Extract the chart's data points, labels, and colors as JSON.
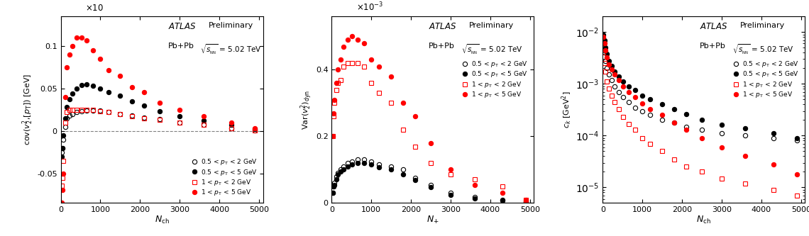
{
  "panel1": {
    "ylabel": "cov($v_{2}^{2}$,[$p_{\\mathrm{T}}$]) [GeV]",
    "xlabel": "$N_{\\mathrm{ch}}$",
    "ylim": [
      -0.085,
      0.135
    ],
    "xlim": [
      0,
      5100
    ],
    "ytick_vals": [
      -0.05,
      0,
      0.05,
      0.1
    ],
    "ytick_labels": [
      "-0.05",
      "0",
      "0.05",
      "0.1"
    ],
    "xtick_vals": [
      0,
      1000,
      2000,
      3000,
      4000,
      5000
    ],
    "scale_label": "$\\times$10",
    "series": {
      "black_open": {
        "x": [
          20,
          40,
          70,
          110,
          160,
          220,
          300,
          400,
          520,
          660,
          820,
          1000,
          1200,
          1500,
          1800,
          2100,
          2500,
          3000,
          3600,
          4300,
          4900
        ],
        "y": [
          -0.025,
          -0.02,
          -0.01,
          0.005,
          0.015,
          0.018,
          0.02,
          0.022,
          0.023,
          0.024,
          0.024,
          0.024,
          0.022,
          0.02,
          0.018,
          0.016,
          0.014,
          0.01,
          0.007,
          0.003,
          0.001
        ],
        "color": "black",
        "marker": "o",
        "fillstyle": "none"
      },
      "black_filled": {
        "x": [
          20,
          40,
          70,
          110,
          160,
          220,
          300,
          400,
          520,
          660,
          820,
          1000,
          1200,
          1500,
          1800,
          2100,
          2500,
          3000,
          3600,
          4300,
          4900
        ],
        "y": [
          -0.03,
          -0.02,
          -0.005,
          0.015,
          0.028,
          0.037,
          0.044,
          0.05,
          0.054,
          0.055,
          0.053,
          0.05,
          0.046,
          0.042,
          0.035,
          0.03,
          0.023,
          0.017,
          0.012,
          0.007,
          0.002
        ],
        "color": "black",
        "marker": "o",
        "fillstyle": "full"
      },
      "red_open": {
        "x": [
          20,
          40,
          70,
          110,
          160,
          220,
          300,
          400,
          520,
          660,
          820,
          1000,
          1200,
          1500,
          1800,
          2100,
          2500,
          3000,
          3600,
          4300,
          4900
        ],
        "y": [
          -0.065,
          -0.055,
          -0.035,
          0.01,
          0.022,
          0.025,
          0.025,
          0.025,
          0.025,
          0.025,
          0.025,
          0.023,
          0.022,
          0.02,
          0.017,
          0.015,
          0.013,
          0.01,
          0.007,
          0.003,
          0.001
        ],
        "color": "red",
        "marker": "s",
        "fillstyle": "none"
      },
      "red_filled": {
        "x": [
          20,
          40,
          70,
          110,
          160,
          220,
          300,
          400,
          520,
          660,
          820,
          1000,
          1200,
          1500,
          1800,
          2100,
          2500,
          3000,
          3600,
          4300,
          4900
        ],
        "y": [
          -0.085,
          -0.07,
          -0.05,
          0.04,
          0.075,
          0.09,
          0.1,
          0.11,
          0.11,
          0.107,
          0.095,
          0.085,
          0.072,
          0.065,
          0.052,
          0.046,
          0.033,
          0.025,
          0.017,
          0.01,
          0.003
        ],
        "color": "red",
        "marker": "o",
        "fillstyle": "full"
      }
    }
  },
  "panel2": {
    "ylabel": "Var$(v_{2}^{2})_{\\mathrm{dyn}}$",
    "xlabel": "$N_{\\mathrm{+}}$",
    "ylim": [
      0,
      0.56
    ],
    "xlim": [
      0,
      5100
    ],
    "ytick_vals": [
      0,
      0.2,
      0.4
    ],
    "ytick_labels": [
      "0",
      "0.2",
      "0.4"
    ],
    "xtick_vals": [
      0,
      1000,
      2000,
      3000,
      4000,
      5000
    ],
    "scale_label": "$\\times$10$^{-3}$",
    "series": {
      "black_open": {
        "x": [
          20,
          40,
          70,
          110,
          160,
          220,
          300,
          400,
          520,
          660,
          820,
          1000,
          1200,
          1500,
          1800,
          2100,
          2500,
          3000,
          3600,
          4300,
          4900
        ],
        "y": [
          0.03,
          0.05,
          0.06,
          0.08,
          0.09,
          0.1,
          0.11,
          0.12,
          0.125,
          0.13,
          0.13,
          0.125,
          0.115,
          0.11,
          0.1,
          0.075,
          0.055,
          0.03,
          0.018,
          0.01,
          0.005
        ],
        "color": "black",
        "marker": "o",
        "fillstyle": "none"
      },
      "black_filled": {
        "x": [
          20,
          40,
          70,
          110,
          160,
          220,
          300,
          400,
          520,
          660,
          820,
          1000,
          1200,
          1500,
          1800,
          2100,
          2500,
          3000,
          3600,
          4300,
          4900
        ],
        "y": [
          0.03,
          0.05,
          0.055,
          0.07,
          0.085,
          0.095,
          0.1,
          0.11,
          0.115,
          0.12,
          0.12,
          0.115,
          0.108,
          0.1,
          0.085,
          0.068,
          0.048,
          0.025,
          0.014,
          0.008,
          0.003
        ],
        "color": "black",
        "marker": "o",
        "fillstyle": "full"
      },
      "red_open": {
        "x": [
          20,
          40,
          70,
          110,
          160,
          220,
          300,
          400,
          520,
          660,
          820,
          1000,
          1200,
          1500,
          1800,
          2100,
          2500,
          3000,
          3600,
          4300,
          4900
        ],
        "y": [
          0.2,
          0.26,
          0.3,
          0.34,
          0.36,
          0.37,
          0.41,
          0.42,
          0.42,
          0.42,
          0.41,
          0.36,
          0.33,
          0.3,
          0.22,
          0.17,
          0.12,
          0.085,
          0.07,
          0.05,
          0.01
        ],
        "color": "red",
        "marker": "s",
        "fillstyle": "none"
      },
      "red_filled": {
        "x": [
          20,
          40,
          70,
          110,
          160,
          220,
          300,
          400,
          520,
          660,
          820,
          1000,
          1200,
          1500,
          1800,
          2100,
          2500,
          3000,
          3600,
          4300,
          4900
        ],
        "y": [
          0.2,
          0.27,
          0.31,
          0.36,
          0.4,
          0.43,
          0.47,
          0.49,
          0.5,
          0.49,
          0.48,
          0.43,
          0.41,
          0.38,
          0.3,
          0.26,
          0.18,
          0.1,
          0.055,
          0.03,
          0.01
        ],
        "color": "red",
        "marker": "o",
        "fillstyle": "full"
      }
    }
  },
  "panel3": {
    "ylabel": "$c_{k}$ [GeV$^{2}$]",
    "xlabel": "$N_{\\mathrm{ch}}$",
    "ylim_log": [
      5e-06,
      0.02
    ],
    "xlim": [
      0,
      5100
    ],
    "xtick_vals": [
      0,
      1000,
      2000,
      3000,
      4000,
      5000
    ],
    "series": {
      "black_open": {
        "x": [
          20,
          40,
          70,
          110,
          160,
          220,
          300,
          400,
          520,
          660,
          820,
          1000,
          1200,
          1500,
          1800,
          2100,
          2500,
          3000,
          3600,
          4300,
          4900
        ],
        "y": [
          0.006,
          0.004,
          0.0028,
          0.002,
          0.0015,
          0.0012,
          0.0009,
          0.0007,
          0.00055,
          0.00045,
          0.00035,
          0.0003,
          0.00025,
          0.0002,
          0.00018,
          0.00015,
          0.00013,
          0.00011,
          0.0001,
          9e-05,
          8e-05
        ],
        "color": "black",
        "marker": "o",
        "fillstyle": "none"
      },
      "black_filled": {
        "x": [
          20,
          40,
          70,
          110,
          160,
          220,
          300,
          400,
          520,
          660,
          820,
          1000,
          1200,
          1500,
          1800,
          2100,
          2500,
          3000,
          3600,
          4300,
          4900
        ],
        "y": [
          0.009,
          0.007,
          0.005,
          0.0038,
          0.0028,
          0.0022,
          0.0017,
          0.0014,
          0.0011,
          0.0009,
          0.00075,
          0.0006,
          0.0005,
          0.0004,
          0.00032,
          0.00026,
          0.0002,
          0.00016,
          0.00014,
          0.00011,
          9e-05
        ],
        "color": "black",
        "marker": "o",
        "fillstyle": "full"
      },
      "red_open": {
        "x": [
          20,
          40,
          70,
          110,
          160,
          220,
          300,
          400,
          520,
          660,
          820,
          1000,
          1200,
          1500,
          1800,
          2100,
          2500,
          3000,
          3600,
          4300,
          4900
        ],
        "y": [
          0.004,
          0.0025,
          0.0017,
          0.0011,
          0.0008,
          0.0006,
          0.00045,
          0.00032,
          0.00023,
          0.00017,
          0.00013,
          9e-05,
          7e-05,
          5e-05,
          3.5e-05,
          2.5e-05,
          2e-05,
          1.5e-05,
          1.2e-05,
          9e-06,
          7e-06
        ],
        "color": "red",
        "marker": "s",
        "fillstyle": "none"
      },
      "red_filled": {
        "x": [
          20,
          40,
          70,
          110,
          160,
          220,
          300,
          400,
          520,
          660,
          820,
          1000,
          1200,
          1500,
          1800,
          2100,
          2500,
          3000,
          3600,
          4300,
          4900
        ],
        "y": [
          0.008,
          0.006,
          0.0045,
          0.0032,
          0.0024,
          0.0019,
          0.0015,
          0.0012,
          0.0009,
          0.0007,
          0.00055,
          0.00042,
          0.00032,
          0.00025,
          0.00018,
          0.00013,
          9e-05,
          6e-05,
          4e-05,
          2.8e-05,
          1.8e-05
        ],
        "color": "red",
        "marker": "o",
        "fillstyle": "full"
      }
    }
  },
  "legend_labels": [
    "0.5 < $p_{\\mathrm{T}}$ < 2 GeV",
    "0.5 < $p_{\\mathrm{T}}$ < 5 GeV",
    "1 < $p_{\\mathrm{T}}$ < 2 GeV",
    "1 < $p_{\\mathrm{T}}$ < 5 GeV"
  ]
}
